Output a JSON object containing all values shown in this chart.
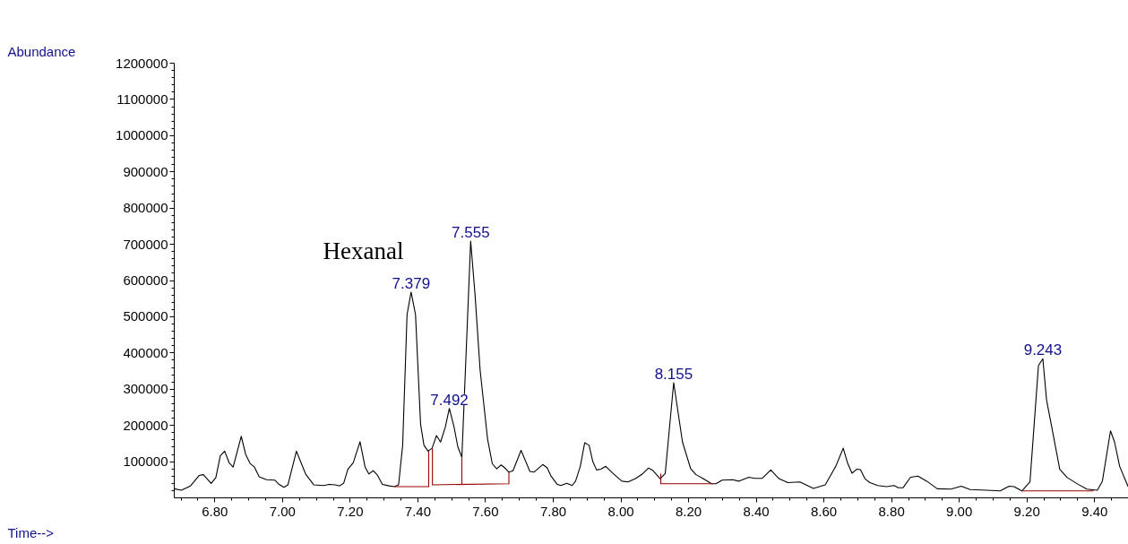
{
  "chart_data": {
    "type": "line",
    "xlabel": "Time-->",
    "ylabel": "Abundance",
    "xlim": [
      6.68,
      9.5
    ],
    "ylim": [
      0,
      1200000
    ],
    "xticks": [
      {
        "value": 6.8,
        "label": "6.80"
      },
      {
        "value": 7.0,
        "label": "7.00"
      },
      {
        "value": 7.2,
        "label": "7.20"
      },
      {
        "value": 7.4,
        "label": "7.40"
      },
      {
        "value": 7.6,
        "label": "7.60"
      },
      {
        "value": 7.8,
        "label": "7.80"
      },
      {
        "value": 8.0,
        "label": "8.00"
      },
      {
        "value": 8.2,
        "label": "8.20"
      },
      {
        "value": 8.4,
        "label": "8.40"
      },
      {
        "value": 8.6,
        "label": "8.60"
      },
      {
        "value": 8.8,
        "label": "8.80"
      },
      {
        "value": 9.0,
        "label": "9.00"
      },
      {
        "value": 9.2,
        "label": "9.20"
      },
      {
        "value": 9.4,
        "label": "9.40"
      }
    ],
    "yticks": [
      100000,
      200000,
      300000,
      400000,
      500000,
      600000,
      700000,
      800000,
      900000,
      1000000,
      1100000,
      1200000
    ],
    "grid": false,
    "marker": "none",
    "line_style": "solid",
    "series": [
      {
        "color": "#000000",
        "x": [
          6.68,
          6.701,
          6.728,
          6.754,
          6.766,
          6.789,
          6.803,
          6.816,
          6.829,
          6.842,
          6.854,
          6.878,
          6.891,
          6.904,
          6.917,
          6.931,
          6.953,
          6.977,
          6.99,
          7.004,
          7.016,
          7.041,
          7.068,
          7.092,
          7.121,
          7.138,
          7.156,
          7.169,
          7.181,
          7.193,
          7.209,
          7.229,
          7.244,
          7.255,
          7.268,
          7.281,
          7.295,
          7.315,
          7.331,
          7.343,
          7.355,
          7.368,
          7.38,
          7.393,
          7.408,
          7.418,
          7.43,
          7.442,
          7.455,
          7.467,
          7.481,
          7.493,
          7.507,
          7.518,
          7.53,
          7.556,
          7.569,
          7.584,
          7.593,
          7.606,
          7.62,
          7.633,
          7.646,
          7.659,
          7.669,
          7.681,
          7.705,
          7.731,
          7.743,
          7.769,
          7.782,
          7.793,
          7.811,
          7.822,
          7.84,
          7.856,
          7.866,
          7.88,
          7.893,
          7.906,
          7.917,
          7.928,
          7.941,
          7.955,
          7.977,
          8.003,
          8.021,
          8.043,
          8.065,
          8.081,
          8.093,
          8.116,
          8.131,
          8.156,
          8.182,
          8.206,
          8.222,
          8.242,
          8.268,
          8.281,
          8.299,
          8.33,
          8.348,
          8.378,
          8.396,
          8.418,
          8.443,
          8.467,
          8.493,
          8.529,
          8.569,
          8.604,
          8.635,
          8.657,
          8.67,
          8.683,
          8.697,
          8.708,
          8.721,
          8.736,
          8.759,
          8.785,
          8.807,
          8.82,
          8.834,
          8.856,
          8.878,
          8.904,
          8.935,
          8.975,
          9.006,
          9.032,
          9.081,
          9.121,
          9.147,
          9.162,
          9.185,
          9.209,
          9.234,
          9.247,
          9.258,
          9.275,
          9.297,
          9.319,
          9.35,
          9.377,
          9.408,
          9.423,
          9.447,
          9.459,
          9.474,
          9.499
        ],
        "values": [
          25000,
          21000,
          33000,
          62000,
          64000,
          40000,
          56000,
          116000,
          129000,
          97000,
          85000,
          170000,
          120000,
          95000,
          85000,
          58000,
          50000,
          49000,
          37000,
          29000,
          36000,
          129000,
          66000,
          36000,
          34000,
          37000,
          36000,
          33000,
          41000,
          79000,
          97000,
          155000,
          85000,
          66000,
          75000,
          62000,
          37000,
          33000,
          31000,
          36000,
          145000,
          506000,
          568000,
          506000,
          203000,
          145000,
          129000,
          137000,
          172000,
          154000,
          195000,
          247000,
          195000,
          141000,
          112000,
          709000,
          560000,
          352000,
          274000,
          162000,
          94000,
          80000,
          91000,
          81000,
          71000,
          75000,
          131000,
          73000,
          71000,
          92000,
          83000,
          61000,
          38000,
          34000,
          40000,
          34000,
          46000,
          87000,
          152000,
          145000,
          100000,
          77000,
          79000,
          87000,
          67000,
          46000,
          44000,
          53000,
          67000,
          82000,
          77000,
          53000,
          67000,
          318000,
          154000,
          81000,
          64000,
          54000,
          39000,
          39000,
          49000,
          50000,
          46000,
          57000,
          54000,
          54000,
          77000,
          53000,
          42000,
          44000,
          26000,
          36000,
          87000,
          137000,
          96000,
          68000,
          79000,
          78000,
          53000,
          42000,
          34000,
          31000,
          34000,
          28000,
          28000,
          57000,
          60000,
          46000,
          25000,
          24000,
          32000,
          23000,
          21000,
          19000,
          32000,
          31000,
          19000,
          44000,
          365000,
          384000,
          270000,
          187000,
          79000,
          56000,
          38000,
          24000,
          21000,
          46000,
          185000,
          154000,
          87000,
          31000
        ]
      },
      {
        "color": "#990000",
        "x": [
          7.331,
          7.432,
          7.432
        ],
        "values": [
          31000,
          31000,
          129000
        ]
      },
      {
        "color": "#990000",
        "x": [
          7.443,
          7.443,
          7.669,
          7.669
        ],
        "values": [
          137000,
          36000,
          39000,
          71000
        ]
      },
      {
        "color": "#990000",
        "x": [
          7.53,
          7.53
        ],
        "values": [
          36000,
          112000
        ]
      },
      {
        "color": "#990000",
        "x": [
          8.118,
          8.118,
          8.272
        ],
        "values": [
          67000,
          39000,
          39000
        ]
      },
      {
        "color": "#990000",
        "x": [
          9.185,
          9.397
        ],
        "values": [
          19000,
          19000
        ]
      }
    ],
    "annotations": [
      "Hexanal",
      {
        "text": "7.379",
        "x": 7.38,
        "y": 568000
      },
      {
        "text": "7.555",
        "x": 7.556,
        "y": 709000
      },
      {
        "text": "7.492",
        "x": 7.493,
        "y": 247000
      },
      {
        "text": "8.155",
        "x": 8.156,
        "y": 318000
      },
      {
        "text": "9.243",
        "x": 9.247,
        "y": 384000
      }
    ]
  }
}
